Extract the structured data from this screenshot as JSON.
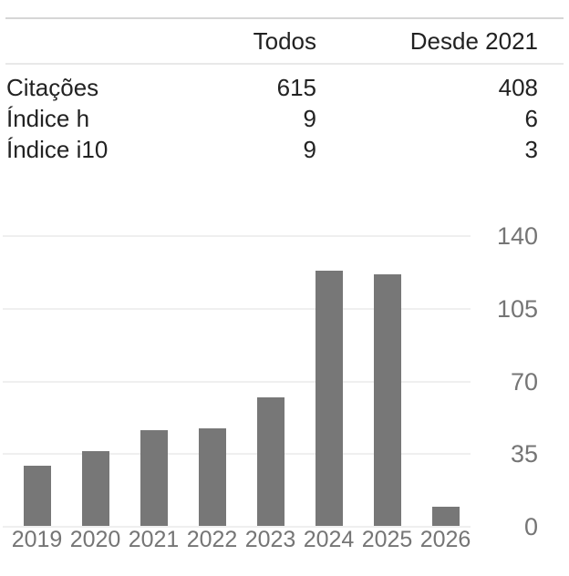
{
  "table": {
    "headers": {
      "all": "Todos",
      "since": "Desde 2021"
    },
    "rows": [
      {
        "label": "Citações",
        "all": "615",
        "since": "408"
      },
      {
        "label": "Índice h",
        "all": "9",
        "since": "6"
      },
      {
        "label": "Índice i10",
        "all": "9",
        "since": "3"
      }
    ]
  },
  "chart_data": {
    "type": "bar",
    "title": "",
    "xlabel": "",
    "ylabel": "",
    "categories": [
      "2019",
      "2020",
      "2021",
      "2022",
      "2023",
      "2024",
      "2025",
      "2026"
    ],
    "values": [
      29,
      36,
      46,
      47,
      62,
      123,
      121,
      9
    ],
    "yticks": [
      0,
      35,
      70,
      105,
      140
    ],
    "ylim": [
      0,
      140
    ],
    "grid": true,
    "legend": "none",
    "bar_color": "#777777",
    "label_color": "#757575",
    "grid_color": "#efefef"
  }
}
